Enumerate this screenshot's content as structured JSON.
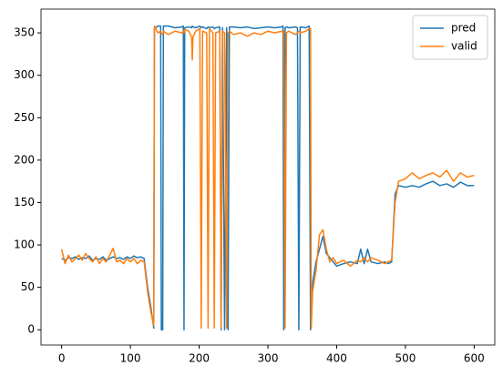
{
  "chart_data": {
    "type": "line",
    "x": [
      0,
      5,
      10,
      15,
      20,
      25,
      30,
      35,
      40,
      45,
      50,
      55,
      60,
      65,
      70,
      75,
      80,
      85,
      90,
      95,
      100,
      105,
      110,
      115,
      120,
      125,
      130,
      134,
      135,
      140,
      144,
      145,
      147,
      148,
      155,
      165,
      175,
      177,
      178,
      179,
      185,
      189,
      190,
      191,
      195,
      201,
      203,
      205,
      211,
      213,
      215,
      220,
      222,
      224,
      230,
      232,
      234,
      237,
      240,
      242,
      244,
      250,
      260,
      270,
      280,
      290,
      300,
      310,
      320,
      322,
      323,
      325,
      327,
      330,
      340,
      343,
      345,
      347,
      355,
      360,
      362,
      363,
      365,
      370,
      375,
      380,
      385,
      390,
      395,
      400,
      410,
      420,
      430,
      435,
      440,
      445,
      450,
      460,
      470,
      475,
      480,
      485,
      490,
      500,
      510,
      520,
      530,
      540,
      550,
      560,
      570,
      580,
      590,
      600
    ],
    "series": [
      {
        "name": "pred",
        "color": "#1f77b4",
        "values": [
          84,
          82,
          85,
          84,
          86,
          83,
          85,
          84,
          87,
          82,
          84,
          83,
          86,
          82,
          84,
          86,
          84,
          85,
          83,
          86,
          84,
          87,
          85,
          86,
          84,
          50,
          25,
          2,
          355,
          358,
          358,
          0,
          0,
          358,
          358,
          356,
          357,
          358,
          0,
          356,
          357,
          356,
          358,
          357,
          356,
          358,
          356,
          357,
          355,
          357,
          356,
          357,
          355,
          356,
          357,
          0,
          356,
          0,
          356,
          0,
          357,
          357,
          356,
          357,
          355,
          356,
          357,
          356,
          357,
          358,
          0,
          356,
          357,
          356,
          357,
          356,
          0,
          357,
          356,
          358,
          0,
          5,
          55,
          80,
          95,
          110,
          90,
          85,
          80,
          75,
          78,
          80,
          78,
          95,
          78,
          95,
          80,
          78,
          80,
          78,
          80,
          160,
          170,
          168,
          170,
          168,
          172,
          175,
          170,
          172,
          168,
          174,
          170,
          170
        ]
      },
      {
        "name": "valid",
        "color": "#ff7f0e",
        "values": [
          95,
          78,
          88,
          80,
          84,
          88,
          82,
          90,
          84,
          80,
          86,
          78,
          84,
          80,
          88,
          96,
          80,
          82,
          78,
          84,
          80,
          84,
          78,
          82,
          80,
          45,
          20,
          5,
          358,
          350,
          352,
          350,
          348,
          352,
          348,
          352,
          350,
          352,
          350,
          354,
          352,
          345,
          318,
          345,
          352,
          355,
          2,
          352,
          350,
          2,
          355,
          350,
          2,
          350,
          352,
          2,
          352,
          350,
          2,
          350,
          352,
          348,
          350,
          346,
          350,
          348,
          352,
          350,
          352,
          350,
          352,
          2,
          350,
          352,
          348,
          350,
          352,
          350,
          352,
          355,
          355,
          2,
          45,
          70,
          112,
          118,
          95,
          80,
          85,
          78,
          82,
          75,
          82,
          80,
          85,
          80,
          85,
          82,
          78,
          80,
          82,
          150,
          175,
          178,
          185,
          178,
          182,
          185,
          180,
          188,
          175,
          185,
          180,
          182
        ]
      }
    ],
    "xlim": [
      -30,
      630
    ],
    "xticks": [
      0,
      100,
      200,
      300,
      400,
      500,
      600
    ],
    "ylim": [
      -18,
      378
    ],
    "yticks": [
      0,
      50,
      100,
      150,
      200,
      250,
      300,
      350
    ],
    "legend": "upper right"
  }
}
